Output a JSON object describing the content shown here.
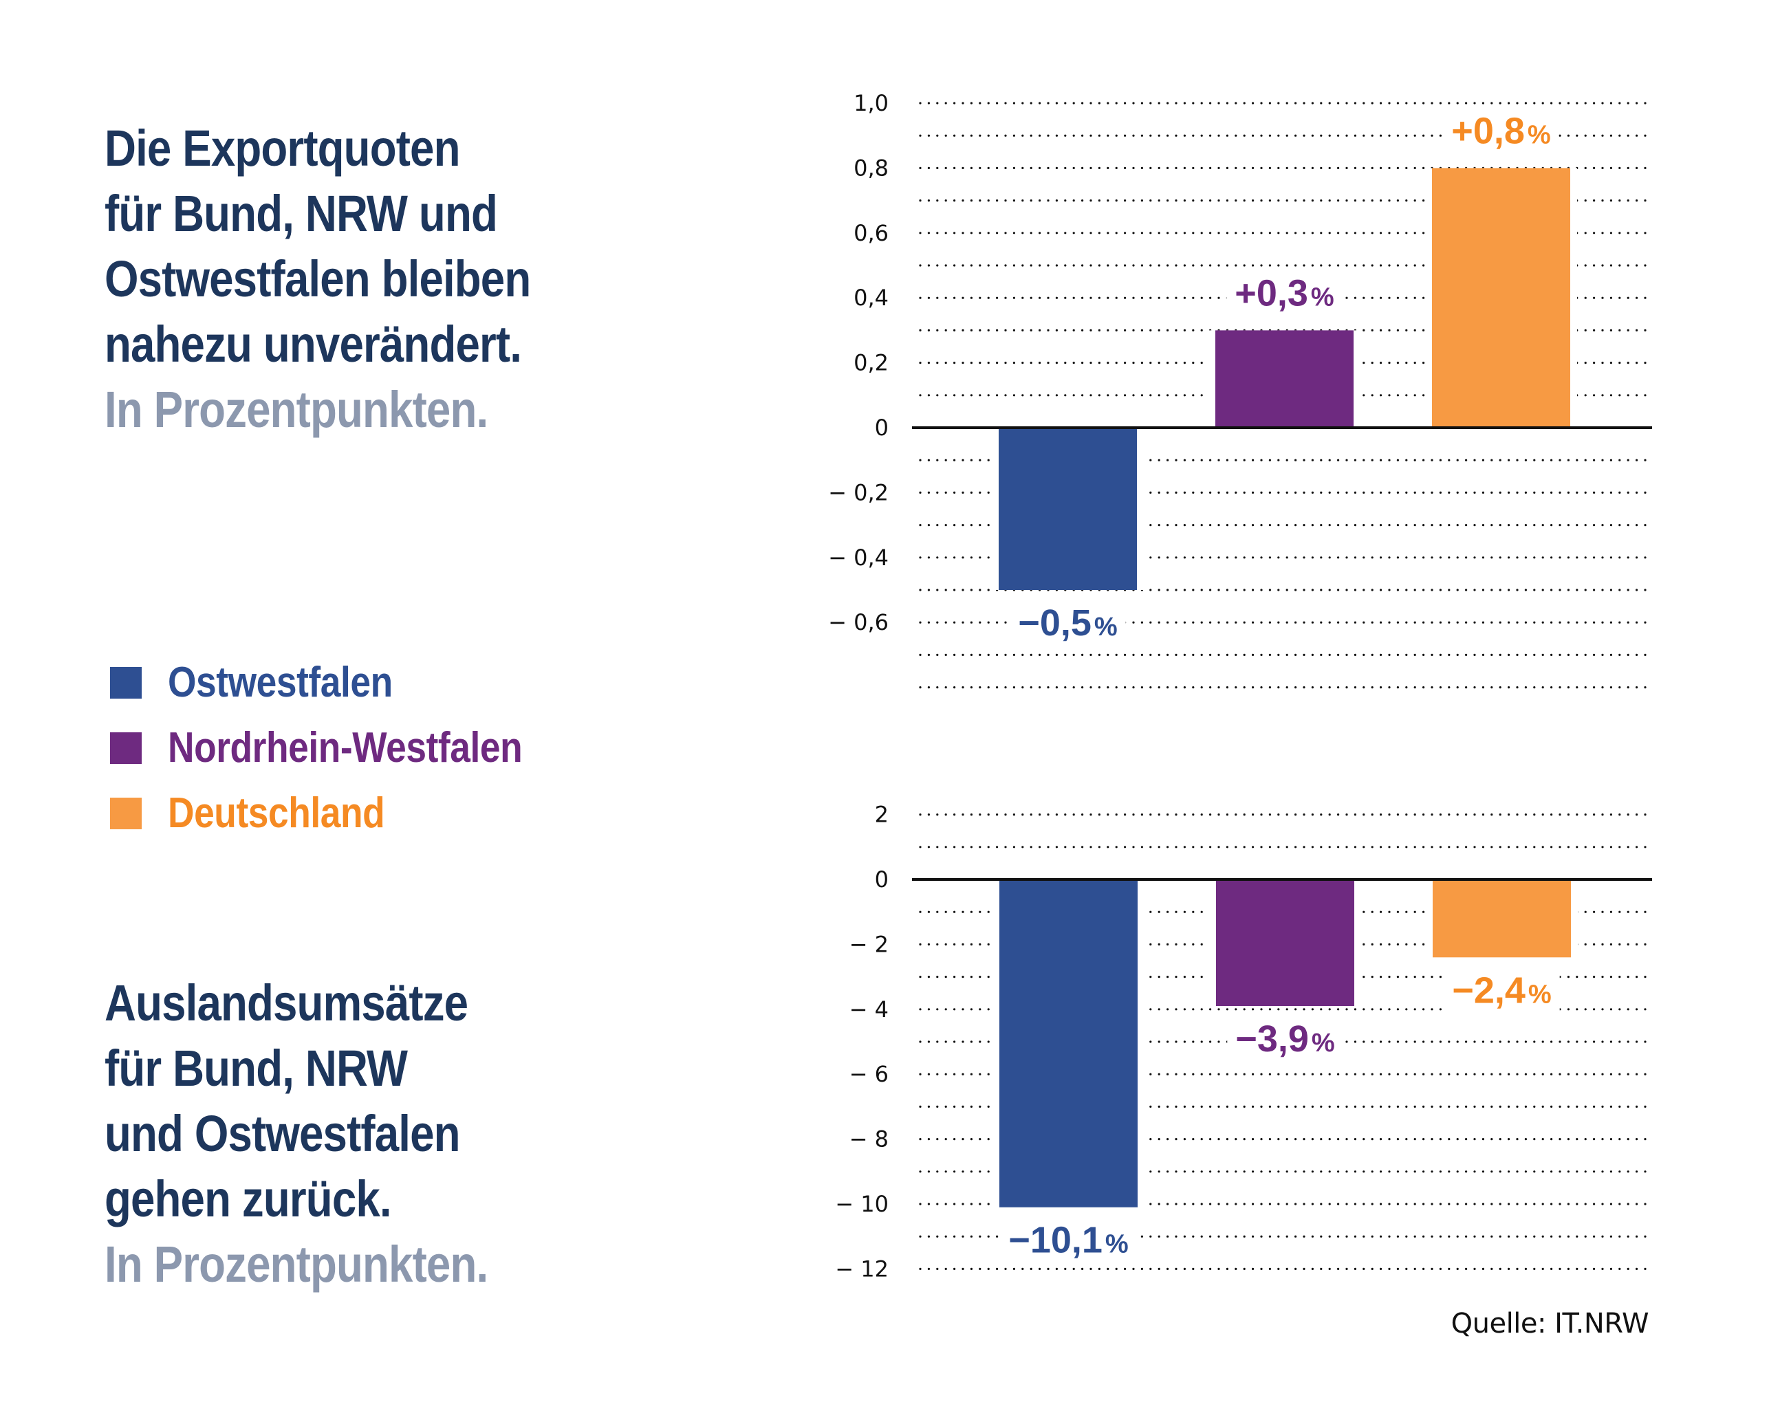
{
  "headlines": {
    "top": {
      "lines": [
        "Die Exportquoten",
        "für Bund, NRW und",
        "Ostwestfalen bleiben",
        "nahezu unverändert."
      ],
      "subtitle": "In Prozentpunkten."
    },
    "bottom": {
      "lines": [
        "Auslandsumsätze",
        "für Bund, NRW",
        "und Ostwestfalen",
        "gehen zurück."
      ],
      "subtitle": "In Prozentpunkten."
    }
  },
  "legend": [
    {
      "label": "Ostwestfalen",
      "color": "#2e4f92"
    },
    {
      "label": "Nordrhein-Westfalen",
      "color": "#6e2a80"
    },
    {
      "label": "Deutschland",
      "color": "#f79a43"
    }
  ],
  "colors": {
    "headline": "#1d365c",
    "subtitle": "#8c98ae",
    "label_blue": "#2e4f92",
    "label_purple": "#6e2a80",
    "label_orange": "#f58a23"
  },
  "source": "Quelle: IT.NRW",
  "chart_data": [
    {
      "type": "bar",
      "title": "Die Exportquoten für Bund, NRW und Ostwestfalen bleiben nahezu unverändert.",
      "subtitle": "In Prozentpunkten.",
      "categories": [
        "Ostwestfalen",
        "Nordrhein-Westfalen",
        "Deutschland"
      ],
      "values": [
        -0.5,
        0.3,
        0.8
      ],
      "value_labels": [
        {
          "sign": "−",
          "number": "0,5",
          "unit": "%"
        },
        {
          "sign": "+",
          "number": "0,3",
          "unit": "%"
        },
        {
          "sign": "+",
          "number": "0,8",
          "unit": "%"
        }
      ],
      "ylim": [
        -0.8,
        1.0
      ],
      "gridline_step": 0.1,
      "yticks": [
        1.0,
        0.8,
        0.6,
        0.4,
        0.2,
        0,
        -0.2,
        -0.4,
        -0.6
      ],
      "ytick_labels": [
        "1,0",
        "0,8",
        "0,6",
        "0,4",
        "0,2",
        "0",
        "− 0,2",
        "− 0,4",
        "− 0,6"
      ],
      "grid": true,
      "grid_style": "dotted",
      "xlabel": "",
      "ylabel": "",
      "legend_position": "left"
    },
    {
      "type": "bar",
      "title": "Auslandsumsätze für Bund, NRW und Ostwestfalen gehen zurück.",
      "subtitle": "In Prozentpunkten.",
      "categories": [
        "Ostwestfalen",
        "Nordrhein-Westfalen",
        "Deutschland"
      ],
      "values": [
        -10.1,
        -3.9,
        -2.4
      ],
      "value_labels": [
        {
          "sign": "−",
          "number": "10,1",
          "unit": "%"
        },
        {
          "sign": "−",
          "number": "3,9",
          "unit": "%"
        },
        {
          "sign": "−",
          "number": "2,4",
          "unit": "%"
        }
      ],
      "ylim": [
        -12,
        2
      ],
      "gridline_step": 1,
      "yticks": [
        2,
        0,
        -2,
        -4,
        -6,
        -8,
        -10,
        -12
      ],
      "ytick_labels": [
        "2",
        "0",
        "− 2",
        "− 4",
        "− 6",
        "− 8",
        "− 10",
        "− 12"
      ],
      "grid": true,
      "grid_style": "dotted",
      "xlabel": "",
      "ylabel": "",
      "legend_position": "left"
    }
  ]
}
